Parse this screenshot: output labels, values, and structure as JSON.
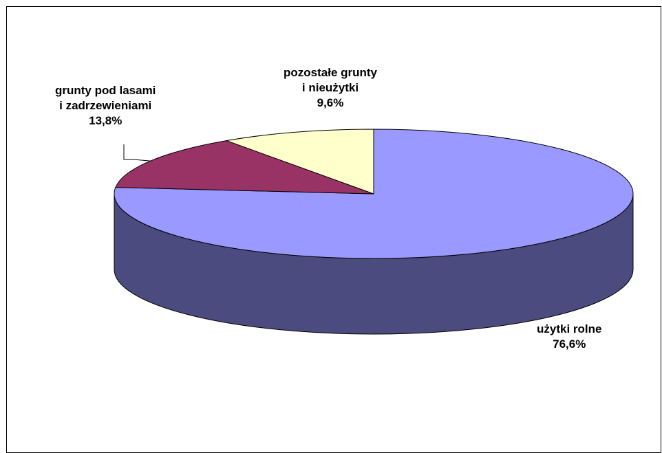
{
  "chart_data": {
    "type": "pie",
    "style": "3d",
    "slices": [
      {
        "name_lines": [
          "użytki rolne"
        ],
        "value": 76.6,
        "value_label": "76,6%",
        "color": "#9999ff",
        "side_color": "#4b4b7f"
      },
      {
        "name_lines": [
          "grunty pod lasami",
          "i zadrzewieniami"
        ],
        "value": 13.8,
        "value_label": "13,8%",
        "color": "#993366",
        "side_color": "#4c1933"
      },
      {
        "name_lines": [
          "pozostałe grunty",
          "i nieużytki"
        ],
        "value": 9.6,
        "value_label": "9,6%",
        "color": "#ffffcc",
        "side_color": "#7f7f66"
      }
    ],
    "legend": "none",
    "data_labels": "outside"
  }
}
